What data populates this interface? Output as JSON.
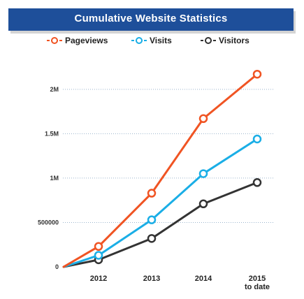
{
  "title": "Cumulative Website Statistics",
  "legend": [
    {
      "label": "Pageviews",
      "color": "#f05423",
      "icon": "circle-line-marker"
    },
    {
      "label": "Visits",
      "color": "#1aaee6",
      "icon": "circle-line-marker"
    },
    {
      "label": "Visitors",
      "color": "#333333",
      "icon": "circle-line-marker"
    }
  ],
  "chart_data": {
    "type": "line",
    "title": "Cumulative Website Statistics",
    "xlabel": "",
    "ylabel": "",
    "x": [
      "",
      "2012",
      "2013",
      "2014",
      "2015"
    ],
    "x_tick_labels": [
      {
        "line1": "2012",
        "line2": ""
      },
      {
        "line1": "2013",
        "line2": ""
      },
      {
        "line1": "2014",
        "line2": ""
      },
      {
        "line1": "2015",
        "line2": "to date"
      }
    ],
    "y_ticks": [
      0,
      500000,
      1000000,
      1500000,
      2000000
    ],
    "y_tick_labels": [
      "0",
      "500000",
      "1M",
      "1.5M",
      "2M"
    ],
    "ylim": [
      0,
      2400000
    ],
    "grid": "horizontal-dotted",
    "legend_position": "top",
    "series": [
      {
        "name": "Pageviews",
        "color": "#f05423",
        "values": [
          0,
          230000,
          830000,
          1670000,
          2170000
        ]
      },
      {
        "name": "Visits",
        "color": "#1aaee6",
        "values": [
          0,
          130000,
          530000,
          1050000,
          1440000
        ]
      },
      {
        "name": "Visitors",
        "color": "#333333",
        "values": [
          0,
          80000,
          320000,
          710000,
          950000
        ]
      }
    ]
  }
}
